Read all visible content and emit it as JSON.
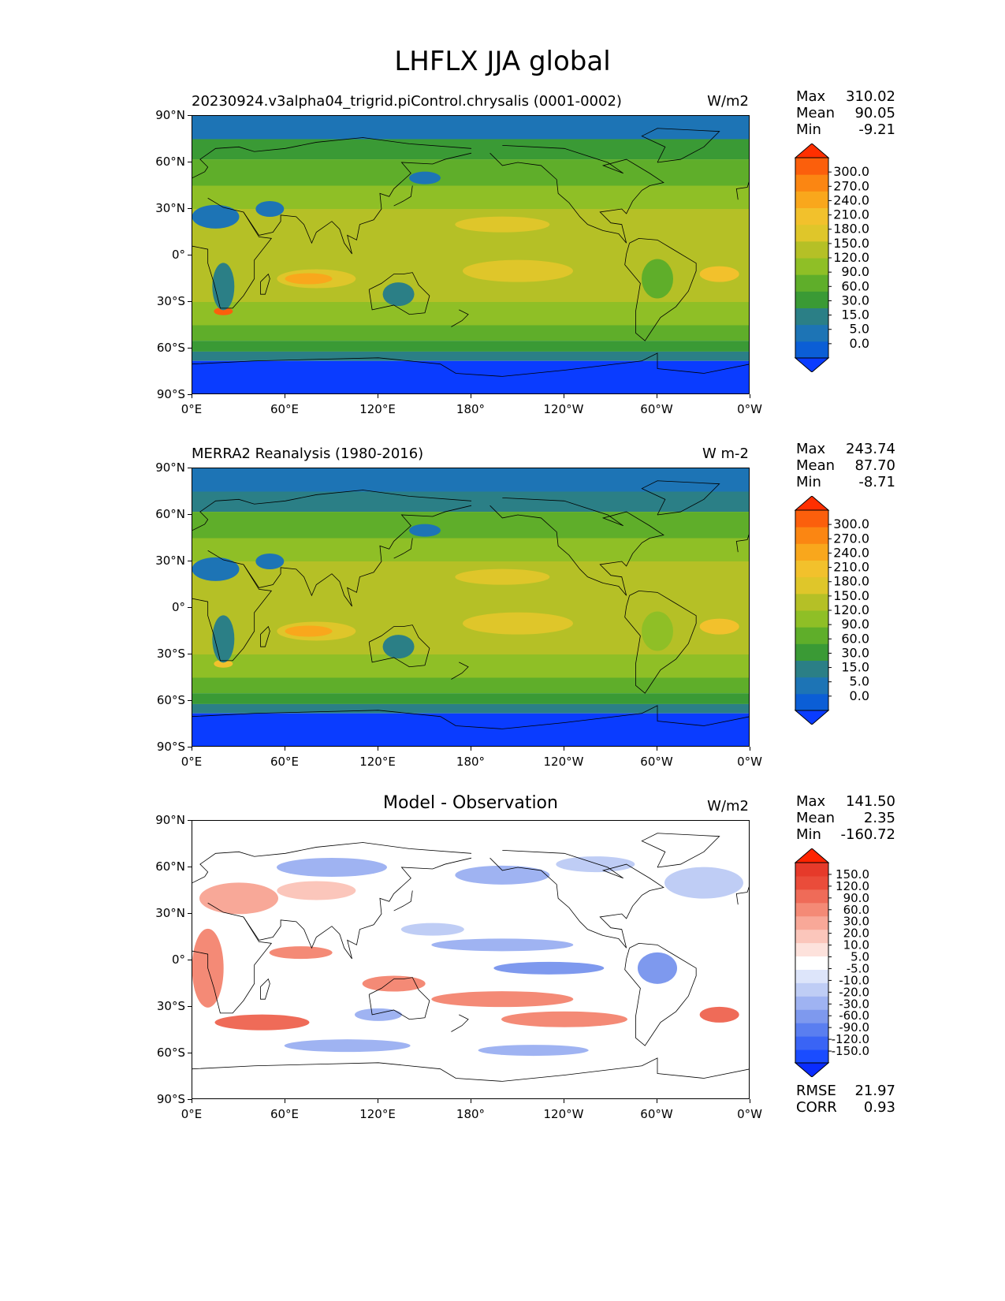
{
  "figure": {
    "title": "LHFLX JJA global"
  },
  "panels": [
    {
      "title": "20230924.v3alpha04_trigrid.piControl.chrysalis (0001-0002)",
      "units": "W/m2",
      "stats": [
        {
          "name": "Max",
          "value": "310.02"
        },
        {
          "name": "Mean",
          "value": "90.05"
        },
        {
          "name": "Min",
          "value": "-9.21"
        }
      ]
    },
    {
      "title": "MERRA2 Reanalysis (1980-2016)",
      "units": "W m-2",
      "stats": [
        {
          "name": "Max",
          "value": "243.74"
        },
        {
          "name": "Mean",
          "value": "87.70"
        },
        {
          "name": "Min",
          "value": "-8.71"
        }
      ]
    },
    {
      "title": "Model - Observation",
      "units": "W/m2",
      "stats": [
        {
          "name": "Max",
          "value": "141.50"
        },
        {
          "name": "Mean",
          "value": "2.35"
        },
        {
          "name": "Min",
          "value": "-160.72"
        }
      ],
      "extra_stats": [
        {
          "name": "RMSE",
          "value": "21.97"
        },
        {
          "name": "CORR",
          "value": "0.93"
        }
      ]
    }
  ],
  "chart_data": {
    "type": "heatmap",
    "map_projection": "PlateCarree",
    "xaxis_ticks": [
      "0°E",
      "60°E",
      "120°E",
      "180°",
      "120°W",
      "60°W",
      "0°W"
    ],
    "yaxis_ticks": [
      "90°N",
      "60°N",
      "30°N",
      "0°",
      "30°S",
      "60°S",
      "90°S"
    ],
    "xlim": [
      0,
      360
    ],
    "ylim": [
      -90,
      90
    ],
    "colorbars": [
      {
        "levels": [
          "0.0",
          "5.0",
          "15.0",
          "30.0",
          "60.0",
          "90.0",
          "120.0",
          "150.0",
          "180.0",
          "210.0",
          "240.0",
          "270.0",
          "300.0"
        ],
        "colors": [
          "#0a3cff",
          "#0b5ed6",
          "#1d74b5",
          "#2b7f86",
          "#3a9a35",
          "#5fae2a",
          "#8fbf26",
          "#b5c026",
          "#dfc62a",
          "#f2c12c",
          "#f9a71c",
          "#fb8612",
          "#fb5f0c",
          "#ff2f00"
        ],
        "extend": "both"
      },
      {
        "levels": [
          "0.0",
          "5.0",
          "15.0",
          "30.0",
          "60.0",
          "90.0",
          "120.0",
          "150.0",
          "180.0",
          "210.0",
          "240.0",
          "270.0",
          "300.0"
        ],
        "colors": [
          "#0a3cff",
          "#0b5ed6",
          "#1d74b5",
          "#2b7f86",
          "#3a9a35",
          "#5fae2a",
          "#8fbf26",
          "#b5c026",
          "#dfc62a",
          "#f2c12c",
          "#f9a71c",
          "#fb8612",
          "#fb5f0c",
          "#ff2f00"
        ],
        "extend": "both"
      },
      {
        "levels": [
          "-150.0",
          "-120.0",
          "-90.0",
          "-60.0",
          "-30.0",
          "-20.0",
          "-10.0",
          "-5.0",
          "5.0",
          "10.0",
          "20.0",
          "30.0",
          "60.0",
          "90.0",
          "120.0",
          "150.0"
        ],
        "colors": [
          "#0a2cff",
          "#1a4cff",
          "#3a64f5",
          "#5a7ef0",
          "#7e99ee",
          "#9fb3f2",
          "#bfcdf5",
          "#dde5fa",
          "#ffffff",
          "#fde2dc",
          "#fbc6bb",
          "#f8a898",
          "#f48a76",
          "#ef6b58",
          "#ea4c3a",
          "#e63a2a",
          "#ff2400"
        ],
        "extend": "both"
      }
    ]
  }
}
